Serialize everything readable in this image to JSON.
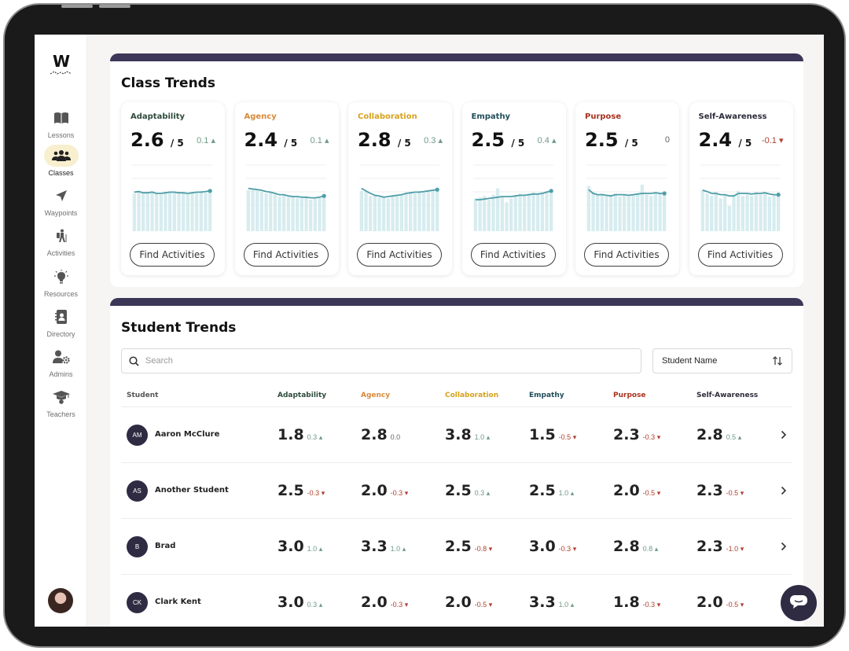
{
  "colors": {
    "adaptability": "#2d4a3a",
    "agency": "#d88a3a",
    "collaboration": "#d6a11c",
    "empathy": "#1f4d5a",
    "purpose": "#a8321f",
    "self_awareness": "#2b2b3a",
    "accent_dark": "#3c3757",
    "spark_line": "#4f9ea8",
    "spark_bar": "#d7ecef"
  },
  "logo": {
    "text": "W"
  },
  "sidebar": {
    "items": [
      {
        "label": "Lessons",
        "icon": "book-icon"
      },
      {
        "label": "Classes",
        "icon": "users-icon",
        "active": true
      },
      {
        "label": "Waypoints",
        "icon": "navigation-arrow-icon"
      },
      {
        "label": "Activities",
        "icon": "hiker-icon"
      },
      {
        "label": "Resources",
        "icon": "lightbulb-icon"
      },
      {
        "label": "Directory",
        "icon": "contact-book-icon"
      },
      {
        "label": "Admins",
        "icon": "user-gear-icon"
      },
      {
        "label": "Teachers",
        "icon": "graduation-cap-icon"
      }
    ]
  },
  "class_trends": {
    "title": "Class Trends",
    "out_of": "/ 5",
    "button_label": "Find Activities",
    "cards": [
      {
        "name": "Adaptability",
        "score": "2.6",
        "delta": "0.1",
        "dir": "up",
        "color": "#2d4a3a",
        "bars": [
          0.6,
          0.62,
          0.6,
          0.61,
          0.64,
          0.6,
          0.58,
          0.6,
          0.63,
          0.62,
          0.6,
          0.62,
          0.59,
          0.6,
          0.63,
          0.64,
          0.61,
          0.62
        ],
        "line": [
          0.62,
          0.63,
          0.61,
          0.61,
          0.62,
          0.6,
          0.6,
          0.61,
          0.62,
          0.62,
          0.61,
          0.61,
          0.6,
          0.61,
          0.62,
          0.62,
          0.63,
          0.64
        ]
      },
      {
        "name": "Agency",
        "score": "2.4",
        "delta": "0.1",
        "dir": "up",
        "color": "#d88a3a",
        "bars": [
          0.65,
          0.66,
          0.64,
          0.62,
          0.6,
          0.62,
          0.58,
          0.55,
          0.57,
          0.54,
          0.55,
          0.53,
          0.52,
          0.54,
          0.5,
          0.52,
          0.53,
          0.54
        ],
        "line": [
          0.68,
          0.67,
          0.66,
          0.65,
          0.63,
          0.62,
          0.6,
          0.58,
          0.58,
          0.56,
          0.55,
          0.55,
          0.54,
          0.54,
          0.53,
          0.53,
          0.54,
          0.56
        ]
      },
      {
        "name": "Collaboration",
        "score": "2.8",
        "delta": "0.3",
        "dir": "up",
        "color": "#d6a11c",
        "bars": [
          0.64,
          0.62,
          0.56,
          0.58,
          0.54,
          0.55,
          0.52,
          0.56,
          0.58,
          0.57,
          0.6,
          0.62,
          0.6,
          0.64,
          0.62,
          0.65,
          0.66,
          0.68
        ],
        "line": [
          0.68,
          0.64,
          0.6,
          0.57,
          0.56,
          0.54,
          0.55,
          0.56,
          0.57,
          0.58,
          0.6,
          0.61,
          0.62,
          0.62,
          0.63,
          0.64,
          0.65,
          0.66
        ]
      },
      {
        "name": "Empathy",
        "score": "2.5",
        "delta": "0.4",
        "dir": "up",
        "color": "#1f4d5a",
        "bars": [
          0.52,
          0.54,
          0.56,
          0.5,
          0.58,
          0.68,
          0.56,
          0.46,
          0.52,
          0.56,
          0.6,
          0.58,
          0.6,
          0.62,
          0.6,
          0.62,
          0.64,
          0.62
        ],
        "line": [
          0.5,
          0.5,
          0.51,
          0.52,
          0.53,
          0.54,
          0.55,
          0.55,
          0.55,
          0.56,
          0.57,
          0.57,
          0.58,
          0.59,
          0.59,
          0.6,
          0.62,
          0.64
        ]
      },
      {
        "name": "Purpose",
        "score": "2.5",
        "delta": "0",
        "dir": "flat",
        "color": "#a8321f",
        "bars": [
          0.72,
          0.62,
          0.58,
          0.6,
          0.56,
          0.58,
          0.6,
          0.55,
          0.58,
          0.56,
          0.58,
          0.6,
          0.74,
          0.58,
          0.56,
          0.62,
          0.6,
          0.6
        ],
        "line": [
          0.66,
          0.6,
          0.58,
          0.58,
          0.57,
          0.56,
          0.58,
          0.58,
          0.58,
          0.57,
          0.58,
          0.59,
          0.6,
          0.6,
          0.6,
          0.61,
          0.6,
          0.6
        ]
      },
      {
        "name": "Self-Awareness",
        "score": "2.4",
        "delta": "-0.1",
        "dir": "down",
        "color": "#2b2b3a",
        "bars": [
          0.66,
          0.6,
          0.56,
          0.62,
          0.52,
          0.58,
          0.4,
          0.58,
          0.64,
          0.56,
          0.58,
          0.56,
          0.62,
          0.58,
          0.6,
          0.55,
          0.58,
          0.56
        ],
        "line": [
          0.65,
          0.63,
          0.6,
          0.6,
          0.58,
          0.58,
          0.56,
          0.56,
          0.6,
          0.6,
          0.6,
          0.59,
          0.6,
          0.6,
          0.61,
          0.59,
          0.58,
          0.58
        ]
      }
    ]
  },
  "student_trends": {
    "title": "Student Trends",
    "search_placeholder": "Search",
    "sort_value": "Student Name",
    "columns": [
      "Student",
      "Adaptability",
      "Agency",
      "Collaboration",
      "Empathy",
      "Purpose",
      "Self-Awareness"
    ],
    "rows": [
      {
        "initials": "AM",
        "name": "Aaron McClure",
        "cells": [
          [
            "1.8",
            "0.3",
            "up"
          ],
          [
            "2.8",
            "0.0",
            "flat"
          ],
          [
            "3.8",
            "1.0",
            "up"
          ],
          [
            "1.5",
            "-0.5",
            "down"
          ],
          [
            "2.3",
            "-0.3",
            "down"
          ],
          [
            "2.8",
            "0.5",
            "up"
          ]
        ]
      },
      {
        "initials": "AS",
        "name": "Another Student",
        "cells": [
          [
            "2.5",
            "-0.3",
            "down"
          ],
          [
            "2.0",
            "-0.3",
            "down"
          ],
          [
            "2.5",
            "0.3",
            "up"
          ],
          [
            "2.5",
            "1.0",
            "up"
          ],
          [
            "2.0",
            "-0.5",
            "down"
          ],
          [
            "2.3",
            "-0.5",
            "down"
          ]
        ]
      },
      {
        "initials": "B",
        "name": "Brad",
        "cells": [
          [
            "3.0",
            "1.0",
            "up"
          ],
          [
            "3.3",
            "1.0",
            "up"
          ],
          [
            "2.5",
            "-0.8",
            "down"
          ],
          [
            "3.0",
            "-0.3",
            "down"
          ],
          [
            "2.8",
            "0.8",
            "up"
          ],
          [
            "2.3",
            "-1.0",
            "down"
          ]
        ]
      },
      {
        "initials": "CK",
        "name": "Clark Kent",
        "cells": [
          [
            "3.0",
            "0.3",
            "up"
          ],
          [
            "2.0",
            "-0.3",
            "down"
          ],
          [
            "2.0",
            "-0.5",
            "down"
          ],
          [
            "3.3",
            "1.0",
            "up"
          ],
          [
            "1.8",
            "-0.3",
            "down"
          ],
          [
            "2.0",
            "-0.5",
            "down"
          ]
        ]
      }
    ]
  }
}
